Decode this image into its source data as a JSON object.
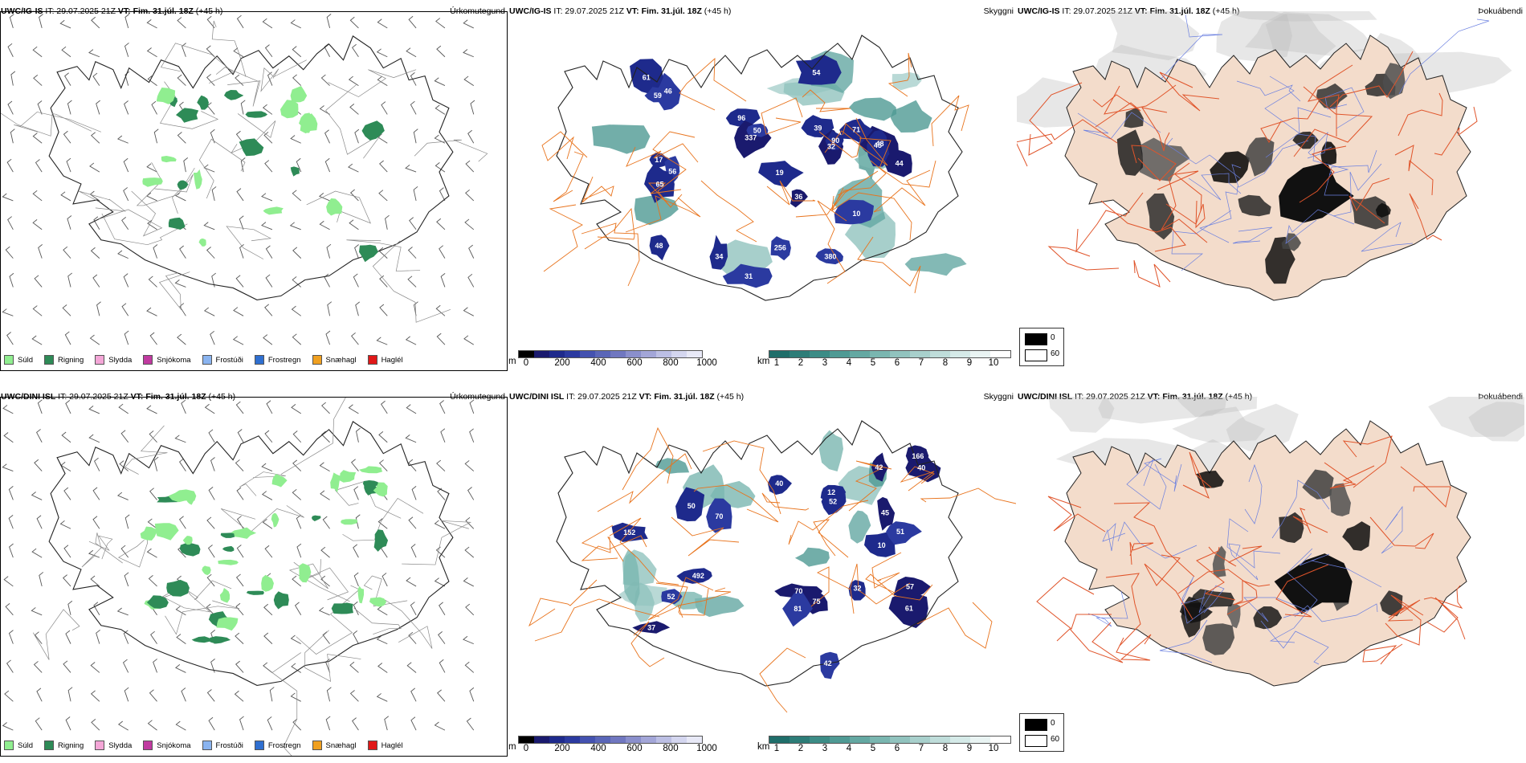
{
  "rows": [
    {
      "model": "UWC/IG-IS",
      "it_label": "IT: 29.07.2025 21Z",
      "vt_label": "VT: Fim. 31.júl. 18Z",
      "lead": "(+45 h)",
      "panels": {
        "precip_type": {
          "title": "Úrkomutegund",
          "legend": [
            "Súld",
            "Rigning",
            "Slydda",
            "Snjókoma",
            "Frostúði",
            "Frostregn",
            "Snæhagl",
            "Haglél"
          ]
        },
        "visibility": {
          "title": "Skyggni",
          "labels": [
            "380",
            "256",
            "10",
            "19",
            "48",
            "45",
            "36",
            "46",
            "54",
            "17",
            "32",
            "31",
            "96",
            "90",
            "337",
            "39",
            "50",
            "44",
            "48",
            "56",
            "65",
            "61",
            "59",
            "34",
            "71"
          ]
        },
        "fog": {
          "title": "Þokuábendi",
          "legend": [
            "0",
            "60"
          ]
        }
      }
    },
    {
      "model": "UWC/DINI ISL",
      "it_label": "IT: 29.07.2025 21Z",
      "vt_label": "VT: Fim. 31.júl. 18Z",
      "lead": "(+45 h)",
      "panels": {
        "precip_type": {
          "title": "Úrkomutegund",
          "legend": [
            "Súld",
            "Rigning",
            "Slydda",
            "Snjókoma",
            "Frostúði",
            "Frostregn",
            "Snæhagl",
            "Haglél"
          ]
        },
        "visibility": {
          "title": "Skyggni",
          "labels": [
            "152",
            "492",
            "45",
            "57",
            "70",
            "10",
            "42",
            "75",
            "70",
            "166",
            "42",
            "40",
            "81",
            "61",
            "52",
            "51",
            "12",
            "37",
            "50",
            "52",
            "40",
            "32"
          ]
        },
        "fog": {
          "title": "Þokuábendi",
          "legend": [
            "0",
            "60"
          ]
        }
      }
    }
  ],
  "precip_colors": [
    "#90ee90",
    "#2e8b57",
    "#f4a6d7",
    "#c03aa0",
    "#8ab4f0",
    "#2f6fd0",
    "#f0a020",
    "#e01818"
  ],
  "cloud_base_bar": {
    "unit": "m",
    "ticks": [
      "0",
      "200",
      "400",
      "600",
      "800",
      "1000"
    ],
    "colors": [
      "#000000",
      "#1a1a6e",
      "#1e2a8c",
      "#2b3aa0",
      "#4452b0",
      "#5a66b8",
      "#7077c0",
      "#8a8fcc",
      "#a3a6d8",
      "#bcbfe4",
      "#d4d6ef",
      "#e8e9f7"
    ]
  },
  "visibility_bar": {
    "unit": "km",
    "ticks": [
      "1",
      "2",
      "3",
      "4",
      "5",
      "6",
      "7",
      "8",
      "9",
      "10"
    ],
    "colors": [
      "#1f6e6a",
      "#2d7d78",
      "#3c8c86",
      "#4f9a94",
      "#64a8a2",
      "#7ab6b0",
      "#91c3be",
      "#a8d0cc",
      "#bfddda",
      "#d5eae8",
      "#e9f4f3",
      "#ffffff"
    ]
  },
  "colors": {
    "land_fog": "#f3dccb",
    "roads": "#e8731c",
    "rivers": "#6a7fe0",
    "coast": "#000000"
  }
}
